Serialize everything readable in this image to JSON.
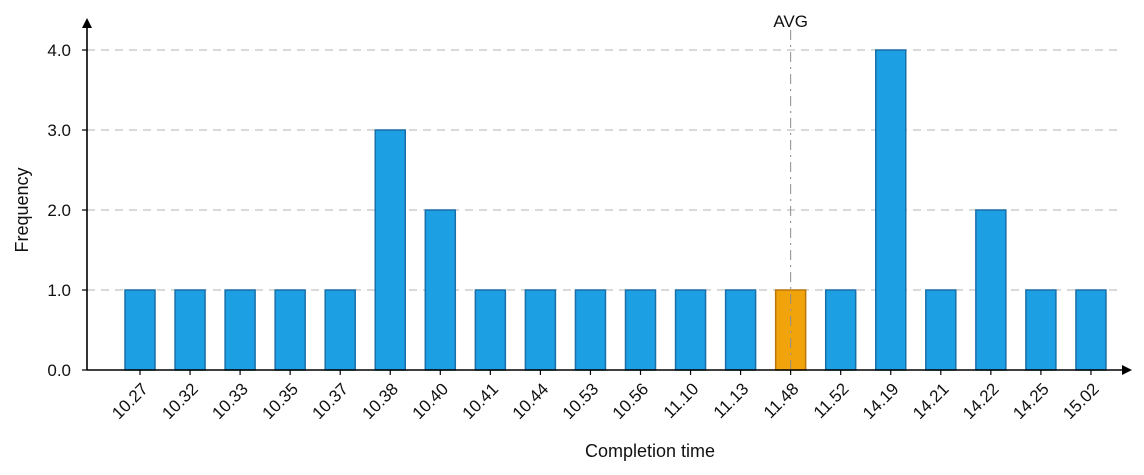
{
  "chart_data": {
    "type": "bar",
    "categories": [
      "10.27",
      "10.32",
      "10.33",
      "10.35",
      "10.37",
      "10.38",
      "10.40",
      "10.41",
      "10.44",
      "10.53",
      "10.56",
      "11.10",
      "11.13",
      "11.48",
      "11.52",
      "14.19",
      "14.21",
      "14.22",
      "14.25",
      "15.02"
    ],
    "values": [
      1,
      1,
      1,
      1,
      1,
      3,
      2,
      1,
      1,
      1,
      1,
      1,
      1,
      1,
      1,
      4,
      1,
      2,
      1,
      1
    ],
    "highlight_category": "11.48",
    "title": "",
    "xlabel": "Completion time",
    "ylabel": "Frequency",
    "ylim": [
      0,
      4
    ],
    "yticks": [
      0,
      1,
      2,
      3,
      4
    ],
    "ytick_labels": [
      "0.0",
      "1.0",
      "2.0",
      "3.0",
      "4.0"
    ],
    "grid": "horizontal-dashed",
    "reference_line": {
      "label": "AVG",
      "category": "11.48"
    },
    "colors": {
      "bar": "#1c9fe3",
      "bar_edge": "#1a6fa8",
      "highlight": "#f0a30a",
      "highlight_edge": "#b8770a",
      "grid": "#b3b3b3",
      "axis": "#000000"
    }
  }
}
